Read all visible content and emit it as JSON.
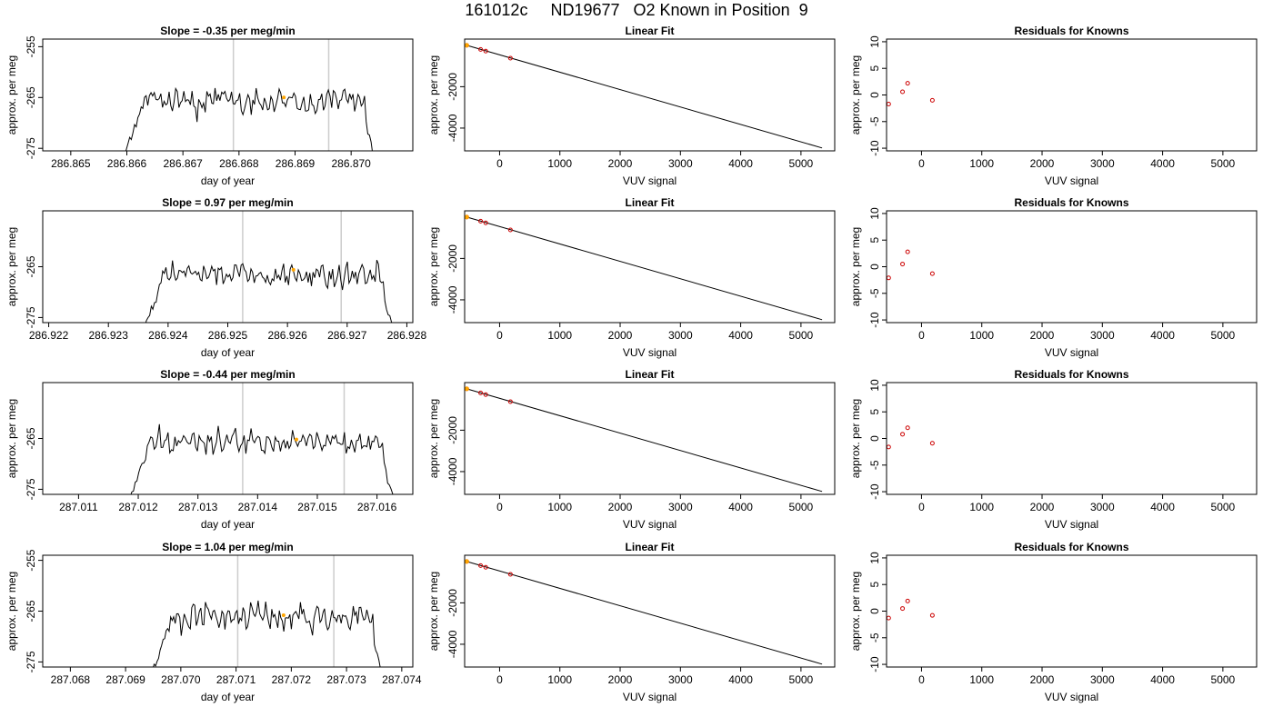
{
  "page": {
    "title": "161012c     ND19677   O2 Known in Position  9"
  },
  "style": {
    "trace_color": "#000000",
    "vline_color": "#cccccc",
    "highlight_color": "#ffa500",
    "point_color": "#cc0000",
    "fit_line_color": "#000000"
  },
  "chart_data": [
    {
      "type": "line",
      "panel": "trace",
      "row": 1,
      "title": "Slope =  -0.35  per meg/min",
      "xlabel": "day of year",
      "ylabel": "approx. per meg",
      "xlim": [
        286.8645,
        286.8711
      ],
      "ylim": [
        -275.5,
        -253.5
      ],
      "xticks": [
        286.865,
        286.866,
        286.867,
        286.868,
        286.869,
        286.87
      ],
      "xtick_labels": [
        "286.865",
        "286.866",
        "286.867",
        "286.868",
        "286.869",
        "286.870"
      ],
      "yticks": [
        -255,
        -265,
        -275
      ],
      "ytick_labels": [
        "-255",
        "-265",
        "-275"
      ],
      "vlines": [
        286.8679,
        286.8696
      ],
      "trace_start": 286.8659,
      "trace_end": 286.8705,
      "trace_baseline": -265.5,
      "highlight_point": {
        "x": 286.8688,
        "y": -265.0
      }
    },
    {
      "type": "scatter",
      "panel": "fit",
      "row": 1,
      "title": "Linear Fit",
      "xlabel": "VUV signal",
      "ylabel": "approx. per meg",
      "xlim": [
        -580,
        5560
      ],
      "ylim": [
        -5100,
        300
      ],
      "xticks": [
        0,
        1000,
        2000,
        3000,
        4000,
        5000
      ],
      "xtick_labels": [
        "0",
        "1000",
        "2000",
        "3000",
        "4000",
        "5000"
      ],
      "yticks": [
        -2000,
        -4000
      ],
      "ytick_labels": [
        "-2000",
        "-4000"
      ],
      "points": [
        {
          "x": -545,
          "y": 0
        },
        {
          "x": -315,
          "y": -200
        },
        {
          "x": -230,
          "y": -280
        },
        {
          "x": 180,
          "y": -620
        }
      ],
      "highlight_point": {
        "x": -545,
        "y": 0
      },
      "fit_line": {
        "x": [
          -545,
          5350
        ],
        "y": [
          0,
          -4960
        ]
      }
    },
    {
      "type": "scatter",
      "panel": "residuals",
      "row": 1,
      "title": "Residuals for Knowns",
      "xlabel": "VUV signal",
      "ylabel": "approx. per meg",
      "xlim": [
        -580,
        5560
      ],
      "ylim": [
        -10.5,
        10.5
      ],
      "xticks": [
        0,
        1000,
        2000,
        3000,
        4000,
        5000
      ],
      "xtick_labels": [
        "0",
        "1000",
        "2000",
        "3000",
        "4000",
        "5000"
      ],
      "yticks": [
        -10,
        -5,
        0,
        5,
        10
      ],
      "ytick_labels": [
        "-10",
        "-5",
        "0",
        "5",
        "10"
      ],
      "points": [
        {
          "x": -545,
          "y": -1.7
        },
        {
          "x": -315,
          "y": 0.6
        },
        {
          "x": -230,
          "y": 2.2
        },
        {
          "x": 180,
          "y": -1.0
        }
      ]
    },
    {
      "type": "line",
      "panel": "trace",
      "row": 2,
      "title": "Slope =  0.97  per meg/min",
      "xlabel": "day of year",
      "ylabel": "approx. per meg",
      "xlim": [
        286.9219,
        286.9281
      ],
      "ylim": [
        -276,
        -254
      ],
      "xticks": [
        286.922,
        286.923,
        286.924,
        286.925,
        286.926,
        286.927,
        286.928
      ],
      "xtick_labels": [
        "286.922",
        "286.923",
        "286.924",
        "286.925",
        "286.926",
        "286.927",
        "286.928"
      ],
      "yticks": [
        -265,
        -275
      ],
      "ytick_labels": [
        "-265",
        "-275"
      ],
      "vlines": [
        286.92525,
        286.9269
      ],
      "trace_start": 286.92355,
      "trace_end": 286.92785,
      "trace_baseline": -266.5,
      "highlight_point": {
        "x": 286.9261,
        "y": -265.6
      }
    },
    {
      "type": "scatter",
      "panel": "fit",
      "row": 2,
      "title": "Linear Fit",
      "xlabel": "VUV signal",
      "ylabel": "approx. per meg",
      "xlim": [
        -580,
        5560
      ],
      "ylim": [
        -5100,
        300
      ],
      "xticks": [
        0,
        1000,
        2000,
        3000,
        4000,
        5000
      ],
      "xtick_labels": [
        "0",
        "1000",
        "2000",
        "3000",
        "4000",
        "5000"
      ],
      "yticks": [
        -2000,
        -4000
      ],
      "ytick_labels": [
        "-2000",
        "-4000"
      ],
      "points": [
        {
          "x": -545,
          "y": 0
        },
        {
          "x": -315,
          "y": -200
        },
        {
          "x": -230,
          "y": -280
        },
        {
          "x": 180,
          "y": -620
        }
      ],
      "highlight_point": {
        "x": -545,
        "y": 0
      },
      "fit_line": {
        "x": [
          -545,
          5350
        ],
        "y": [
          0,
          -4960
        ]
      }
    },
    {
      "type": "scatter",
      "panel": "residuals",
      "row": 2,
      "title": "Residuals for Knowns",
      "xlabel": "VUV signal",
      "ylabel": "approx. per meg",
      "xlim": [
        -580,
        5560
      ],
      "ylim": [
        -10.5,
        10.5
      ],
      "xticks": [
        0,
        1000,
        2000,
        3000,
        4000,
        5000
      ],
      "xtick_labels": [
        "0",
        "1000",
        "2000",
        "3000",
        "4000",
        "5000"
      ],
      "yticks": [
        -10,
        -5,
        0,
        5,
        10
      ],
      "ytick_labels": [
        "-10",
        "-5",
        "0",
        "5",
        "10"
      ],
      "points": [
        {
          "x": -545,
          "y": -2.1
        },
        {
          "x": -315,
          "y": 0.5
        },
        {
          "x": -230,
          "y": 2.8
        },
        {
          "x": 180,
          "y": -1.3
        }
      ]
    },
    {
      "type": "line",
      "panel": "trace",
      "row": 3,
      "title": "Slope =  -0.44  per meg/min",
      "xlabel": "day of year",
      "ylabel": "approx. per meg",
      "xlim": [
        287.0104,
        287.0166
      ],
      "ylim": [
        -276,
        -254
      ],
      "xticks": [
        287.011,
        287.012,
        287.013,
        287.014,
        287.015,
        287.016
      ],
      "xtick_labels": [
        "287.011",
        "287.012",
        "287.013",
        "287.014",
        "287.015",
        "287.016"
      ],
      "yticks": [
        -265,
        -275
      ],
      "ytick_labels": [
        "-265",
        "-275"
      ],
      "vlines": [
        287.01375,
        287.01545
      ],
      "trace_start": 287.0118,
      "trace_end": 287.01635,
      "trace_baseline": -265.8,
      "highlight_point": {
        "x": 287.01465,
        "y": -265.2
      }
    },
    {
      "type": "scatter",
      "panel": "fit",
      "row": 3,
      "title": "Linear Fit",
      "xlabel": "VUV signal",
      "ylabel": "approx. per meg",
      "xlim": [
        -580,
        5560
      ],
      "ylim": [
        -5100,
        300
      ],
      "xticks": [
        0,
        1000,
        2000,
        3000,
        4000,
        5000
      ],
      "xtick_labels": [
        "0",
        "1000",
        "2000",
        "3000",
        "4000",
        "5000"
      ],
      "yticks": [
        -2000,
        -4000
      ],
      "ytick_labels": [
        "-2000",
        "-4000"
      ],
      "points": [
        {
          "x": -545,
          "y": 0
        },
        {
          "x": -315,
          "y": -200
        },
        {
          "x": -230,
          "y": -280
        },
        {
          "x": 180,
          "y": -620
        }
      ],
      "highlight_point": {
        "x": -545,
        "y": 0
      },
      "fit_line": {
        "x": [
          -545,
          5350
        ],
        "y": [
          0,
          -4960
        ]
      }
    },
    {
      "type": "scatter",
      "panel": "residuals",
      "row": 3,
      "title": "Residuals for Knowns",
      "xlabel": "VUV signal",
      "ylabel": "approx. per meg",
      "xlim": [
        -580,
        5560
      ],
      "ylim": [
        -10.5,
        10.5
      ],
      "xticks": [
        0,
        1000,
        2000,
        3000,
        4000,
        5000
      ],
      "xtick_labels": [
        "0",
        "1000",
        "2000",
        "3000",
        "4000",
        "5000"
      ],
      "yticks": [
        -10,
        -5,
        0,
        5,
        10
      ],
      "ytick_labels": [
        "-10",
        "-5",
        "0",
        "5",
        "10"
      ],
      "points": [
        {
          "x": -545,
          "y": -1.6
        },
        {
          "x": -315,
          "y": 0.8
        },
        {
          "x": -230,
          "y": 2.0
        },
        {
          "x": 180,
          "y": -0.9
        }
      ]
    },
    {
      "type": "line",
      "panel": "trace",
      "row": 4,
      "title": "Slope =  1.04  per meg/min",
      "xlabel": "day of year",
      "ylabel": "approx. per meg",
      "xlim": [
        287.0675,
        287.0742
      ],
      "ylim": [
        -276,
        -254
      ],
      "xticks": [
        287.068,
        287.069,
        287.07,
        287.071,
        287.072,
        287.073,
        287.074
      ],
      "xtick_labels": [
        "287.068",
        "287.069",
        "287.070",
        "287.071",
        "287.072",
        "287.073",
        "287.074"
      ],
      "yticks": [
        -255,
        -265,
        -275
      ],
      "ytick_labels": [
        "-255",
        "-265",
        "-275"
      ],
      "vlines": [
        287.07103,
        287.07277
      ],
      "trace_start": 287.06943,
      "trace_end": 287.07372,
      "trace_baseline": -266.2,
      "highlight_point": {
        "x": 287.07186,
        "y": -265.8
      }
    },
    {
      "type": "scatter",
      "panel": "fit",
      "row": 4,
      "title": "Linear Fit",
      "xlabel": "VUV signal",
      "ylabel": "approx. per meg",
      "xlim": [
        -580,
        5560
      ],
      "ylim": [
        -5100,
        300
      ],
      "xticks": [
        0,
        1000,
        2000,
        3000,
        4000,
        5000
      ],
      "xtick_labels": [
        "0",
        "1000",
        "2000",
        "3000",
        "4000",
        "5000"
      ],
      "yticks": [
        -2000,
        -4000
      ],
      "ytick_labels": [
        "-2000",
        "-4000"
      ],
      "points": [
        {
          "x": -545,
          "y": 0
        },
        {
          "x": -315,
          "y": -200
        },
        {
          "x": -230,
          "y": -280
        },
        {
          "x": 180,
          "y": -620
        }
      ],
      "highlight_point": {
        "x": -545,
        "y": 0
      },
      "fit_line": {
        "x": [
          -545,
          5350
        ],
        "y": [
          0,
          -4960
        ]
      }
    },
    {
      "type": "scatter",
      "panel": "residuals",
      "row": 4,
      "title": "Residuals for Knowns",
      "xlabel": "VUV signal",
      "ylabel": "approx. per meg",
      "xlim": [
        -580,
        5560
      ],
      "ylim": [
        -10.5,
        10.5
      ],
      "xticks": [
        0,
        1000,
        2000,
        3000,
        4000,
        5000
      ],
      "xtick_labels": [
        "0",
        "1000",
        "2000",
        "3000",
        "4000",
        "5000"
      ],
      "yticks": [
        -10,
        -5,
        0,
        5,
        10
      ],
      "ytick_labels": [
        "-10",
        "-5",
        "0",
        "5",
        "10"
      ],
      "points": [
        {
          "x": -545,
          "y": -1.3
        },
        {
          "x": -315,
          "y": 0.5
        },
        {
          "x": -230,
          "y": 1.9
        },
        {
          "x": 180,
          "y": -0.8
        }
      ]
    }
  ]
}
